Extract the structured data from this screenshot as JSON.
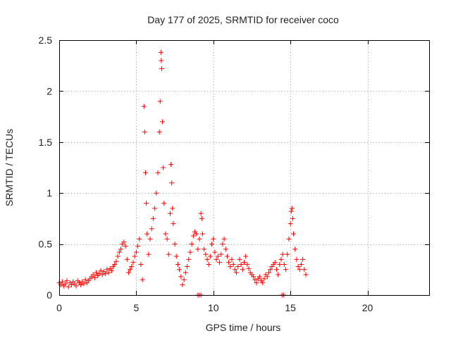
{
  "chart_data": {
    "type": "scatter",
    "title": "Day 177 of 2025, SRMTID for receiver coco",
    "xlabel": "GPS time / hours",
    "ylabel": "SRMTID / TECUs",
    "xlim": [
      0,
      24
    ],
    "ylim": [
      0,
      2.5
    ],
    "x_ticks": [
      0,
      5,
      10,
      15,
      20
    ],
    "x_tick_labels": [
      "0",
      "5",
      "10",
      "15",
      "20"
    ],
    "y_ticks": [
      0,
      0.5,
      1,
      1.5,
      2,
      2.5
    ],
    "y_tick_labels": [
      "0",
      "0.5",
      "1",
      "1.5",
      "2",
      "2.5"
    ],
    "grid": true,
    "marker": "+",
    "color": "#ff0000",
    "series": [
      {
        "name": "coco",
        "points": [
          [
            0.0,
            0.12
          ],
          [
            0.1,
            0.1
          ],
          [
            0.2,
            0.13
          ],
          [
            0.3,
            0.09
          ],
          [
            0.4,
            0.11
          ],
          [
            0.5,
            0.14
          ],
          [
            0.6,
            0.08
          ],
          [
            0.7,
            0.12
          ],
          [
            0.8,
            0.1
          ],
          [
            0.9,
            0.13
          ],
          [
            1.0,
            0.11
          ],
          [
            1.1,
            0.09
          ],
          [
            1.2,
            0.14
          ],
          [
            1.3,
            0.12
          ],
          [
            1.4,
            0.1
          ],
          [
            1.5,
            0.13
          ],
          [
            1.6,
            0.11
          ],
          [
            1.7,
            0.15
          ],
          [
            1.8,
            0.12
          ],
          [
            1.9,
            0.14
          ],
          [
            2.0,
            0.16
          ],
          [
            2.1,
            0.18
          ],
          [
            2.2,
            0.2
          ],
          [
            2.3,
            0.17
          ],
          [
            2.4,
            0.22
          ],
          [
            2.5,
            0.19
          ],
          [
            2.6,
            0.21
          ],
          [
            2.7,
            0.24
          ],
          [
            2.8,
            0.2
          ],
          [
            2.9,
            0.23
          ],
          [
            3.0,
            0.21
          ],
          [
            3.1,
            0.25
          ],
          [
            3.2,
            0.22
          ],
          [
            3.3,
            0.26
          ],
          [
            3.4,
            0.24
          ],
          [
            3.5,
            0.28
          ],
          [
            3.6,
            0.3
          ],
          [
            3.7,
            0.33
          ],
          [
            3.8,
            0.38
          ],
          [
            3.9,
            0.42
          ],
          [
            4.0,
            0.45
          ],
          [
            4.1,
            0.5
          ],
          [
            4.2,
            0.52
          ],
          [
            4.3,
            0.48
          ],
          [
            4.4,
            0.35
          ],
          [
            4.5,
            0.22
          ],
          [
            4.6,
            0.25
          ],
          [
            4.7,
            0.28
          ],
          [
            4.8,
            0.32
          ],
          [
            4.9,
            0.38
          ],
          [
            5.0,
            0.42
          ],
          [
            5.1,
            0.48
          ],
          [
            5.2,
            0.55
          ],
          [
            5.3,
            0.3
          ],
          [
            5.4,
            0.15
          ],
          [
            5.5,
            1.85
          ],
          [
            5.55,
            1.6
          ],
          [
            5.6,
            1.2
          ],
          [
            5.65,
            0.9
          ],
          [
            5.7,
            0.6
          ],
          [
            5.8,
            0.4
          ],
          [
            5.9,
            0.55
          ],
          [
            6.0,
            0.65
          ],
          [
            6.1,
            0.75
          ],
          [
            6.2,
            0.85
          ],
          [
            6.3,
            1.0
          ],
          [
            6.4,
            1.2
          ],
          [
            6.5,
            1.6
          ],
          [
            6.55,
            1.9
          ],
          [
            6.6,
            2.38
          ],
          [
            6.62,
            2.3
          ],
          [
            6.65,
            2.22
          ],
          [
            6.7,
            1.7
          ],
          [
            6.75,
            1.25
          ],
          [
            6.8,
            0.9
          ],
          [
            6.9,
            0.6
          ],
          [
            7.0,
            0.55
          ],
          [
            7.1,
            0.4
          ],
          [
            7.2,
            0.8
          ],
          [
            7.25,
            1.28
          ],
          [
            7.3,
            1.1
          ],
          [
            7.35,
            0.85
          ],
          [
            7.4,
            0.7
          ],
          [
            7.5,
            0.5
          ],
          [
            7.6,
            0.38
          ],
          [
            7.7,
            0.3
          ],
          [
            7.8,
            0.25
          ],
          [
            7.9,
            0.18
          ],
          [
            8.0,
            0.1
          ],
          [
            8.1,
            0.15
          ],
          [
            8.2,
            0.22
          ],
          [
            8.3,
            0.28
          ],
          [
            8.4,
            0.35
          ],
          [
            8.5,
            0.42
          ],
          [
            8.6,
            0.5
          ],
          [
            8.7,
            0.58
          ],
          [
            8.8,
            0.62
          ],
          [
            8.9,
            0.6
          ],
          [
            9.0,
            0.45
          ],
          [
            9.1,
            0.55
          ],
          [
            9.2,
            0.8
          ],
          [
            9.25,
            0.75
          ],
          [
            9.3,
            0.6
          ],
          [
            9.4,
            0.45
          ],
          [
            9.5,
            0.4
          ],
          [
            9.6,
            0.35
          ],
          [
            9.7,
            0.3
          ],
          [
            9.8,
            0.38
          ],
          [
            9.9,
            0.5
          ],
          [
            10.0,
            0.55
          ],
          [
            10.1,
            0.42
          ],
          [
            10.2,
            0.35
          ],
          [
            10.3,
            0.38
          ],
          [
            10.4,
            0.32
          ],
          [
            10.5,
            0.4
          ],
          [
            10.6,
            0.5
          ],
          [
            10.7,
            0.55
          ],
          [
            10.8,
            0.45
          ],
          [
            10.9,
            0.38
          ],
          [
            11.0,
            0.32
          ],
          [
            11.1,
            0.28
          ],
          [
            11.2,
            0.35
          ],
          [
            11.3,
            0.3
          ],
          [
            11.4,
            0.25
          ],
          [
            11.5,
            0.22
          ],
          [
            11.6,
            0.28
          ],
          [
            11.7,
            0.35
          ],
          [
            11.8,
            0.3
          ],
          [
            11.9,
            0.25
          ],
          [
            12.0,
            0.32
          ],
          [
            12.1,
            0.38
          ],
          [
            12.2,
            0.3
          ],
          [
            12.3,
            0.26
          ],
          [
            12.4,
            0.22
          ],
          [
            12.5,
            0.2
          ],
          [
            12.6,
            0.18
          ],
          [
            12.7,
            0.15
          ],
          [
            12.8,
            0.12
          ],
          [
            12.9,
            0.16
          ],
          [
            13.0,
            0.18
          ],
          [
            13.1,
            0.14
          ],
          [
            13.2,
            0.12
          ],
          [
            13.3,
            0.16
          ],
          [
            13.4,
            0.2
          ],
          [
            13.5,
            0.18
          ],
          [
            13.6,
            0.22
          ],
          [
            13.7,
            0.25
          ],
          [
            13.8,
            0.28
          ],
          [
            13.9,
            0.3
          ],
          [
            14.0,
            0.32
          ],
          [
            14.1,
            0.25
          ],
          [
            14.2,
            0.2
          ],
          [
            14.3,
            0.3
          ],
          [
            14.4,
            0.35
          ],
          [
            14.5,
            0.4
          ],
          [
            14.6,
            0.3
          ],
          [
            14.7,
            0.25
          ],
          [
            14.8,
            0.4
          ],
          [
            14.9,
            0.55
          ],
          [
            15.0,
            0.7
          ],
          [
            15.05,
            0.82
          ],
          [
            15.1,
            0.85
          ],
          [
            15.15,
            0.75
          ],
          [
            15.2,
            0.6
          ],
          [
            15.3,
            0.45
          ],
          [
            15.4,
            0.35
          ],
          [
            15.5,
            0.28
          ],
          [
            15.6,
            0.25
          ],
          [
            15.7,
            0.3
          ],
          [
            15.8,
            0.35
          ],
          [
            15.9,
            0.25
          ],
          [
            16.0,
            0.2
          ],
          [
            9.0,
            0.0
          ],
          [
            9.1,
            0.0
          ],
          [
            9.2,
            0.0
          ],
          [
            14.45,
            0.0
          ],
          [
            14.55,
            0.0
          ]
        ]
      }
    ]
  }
}
